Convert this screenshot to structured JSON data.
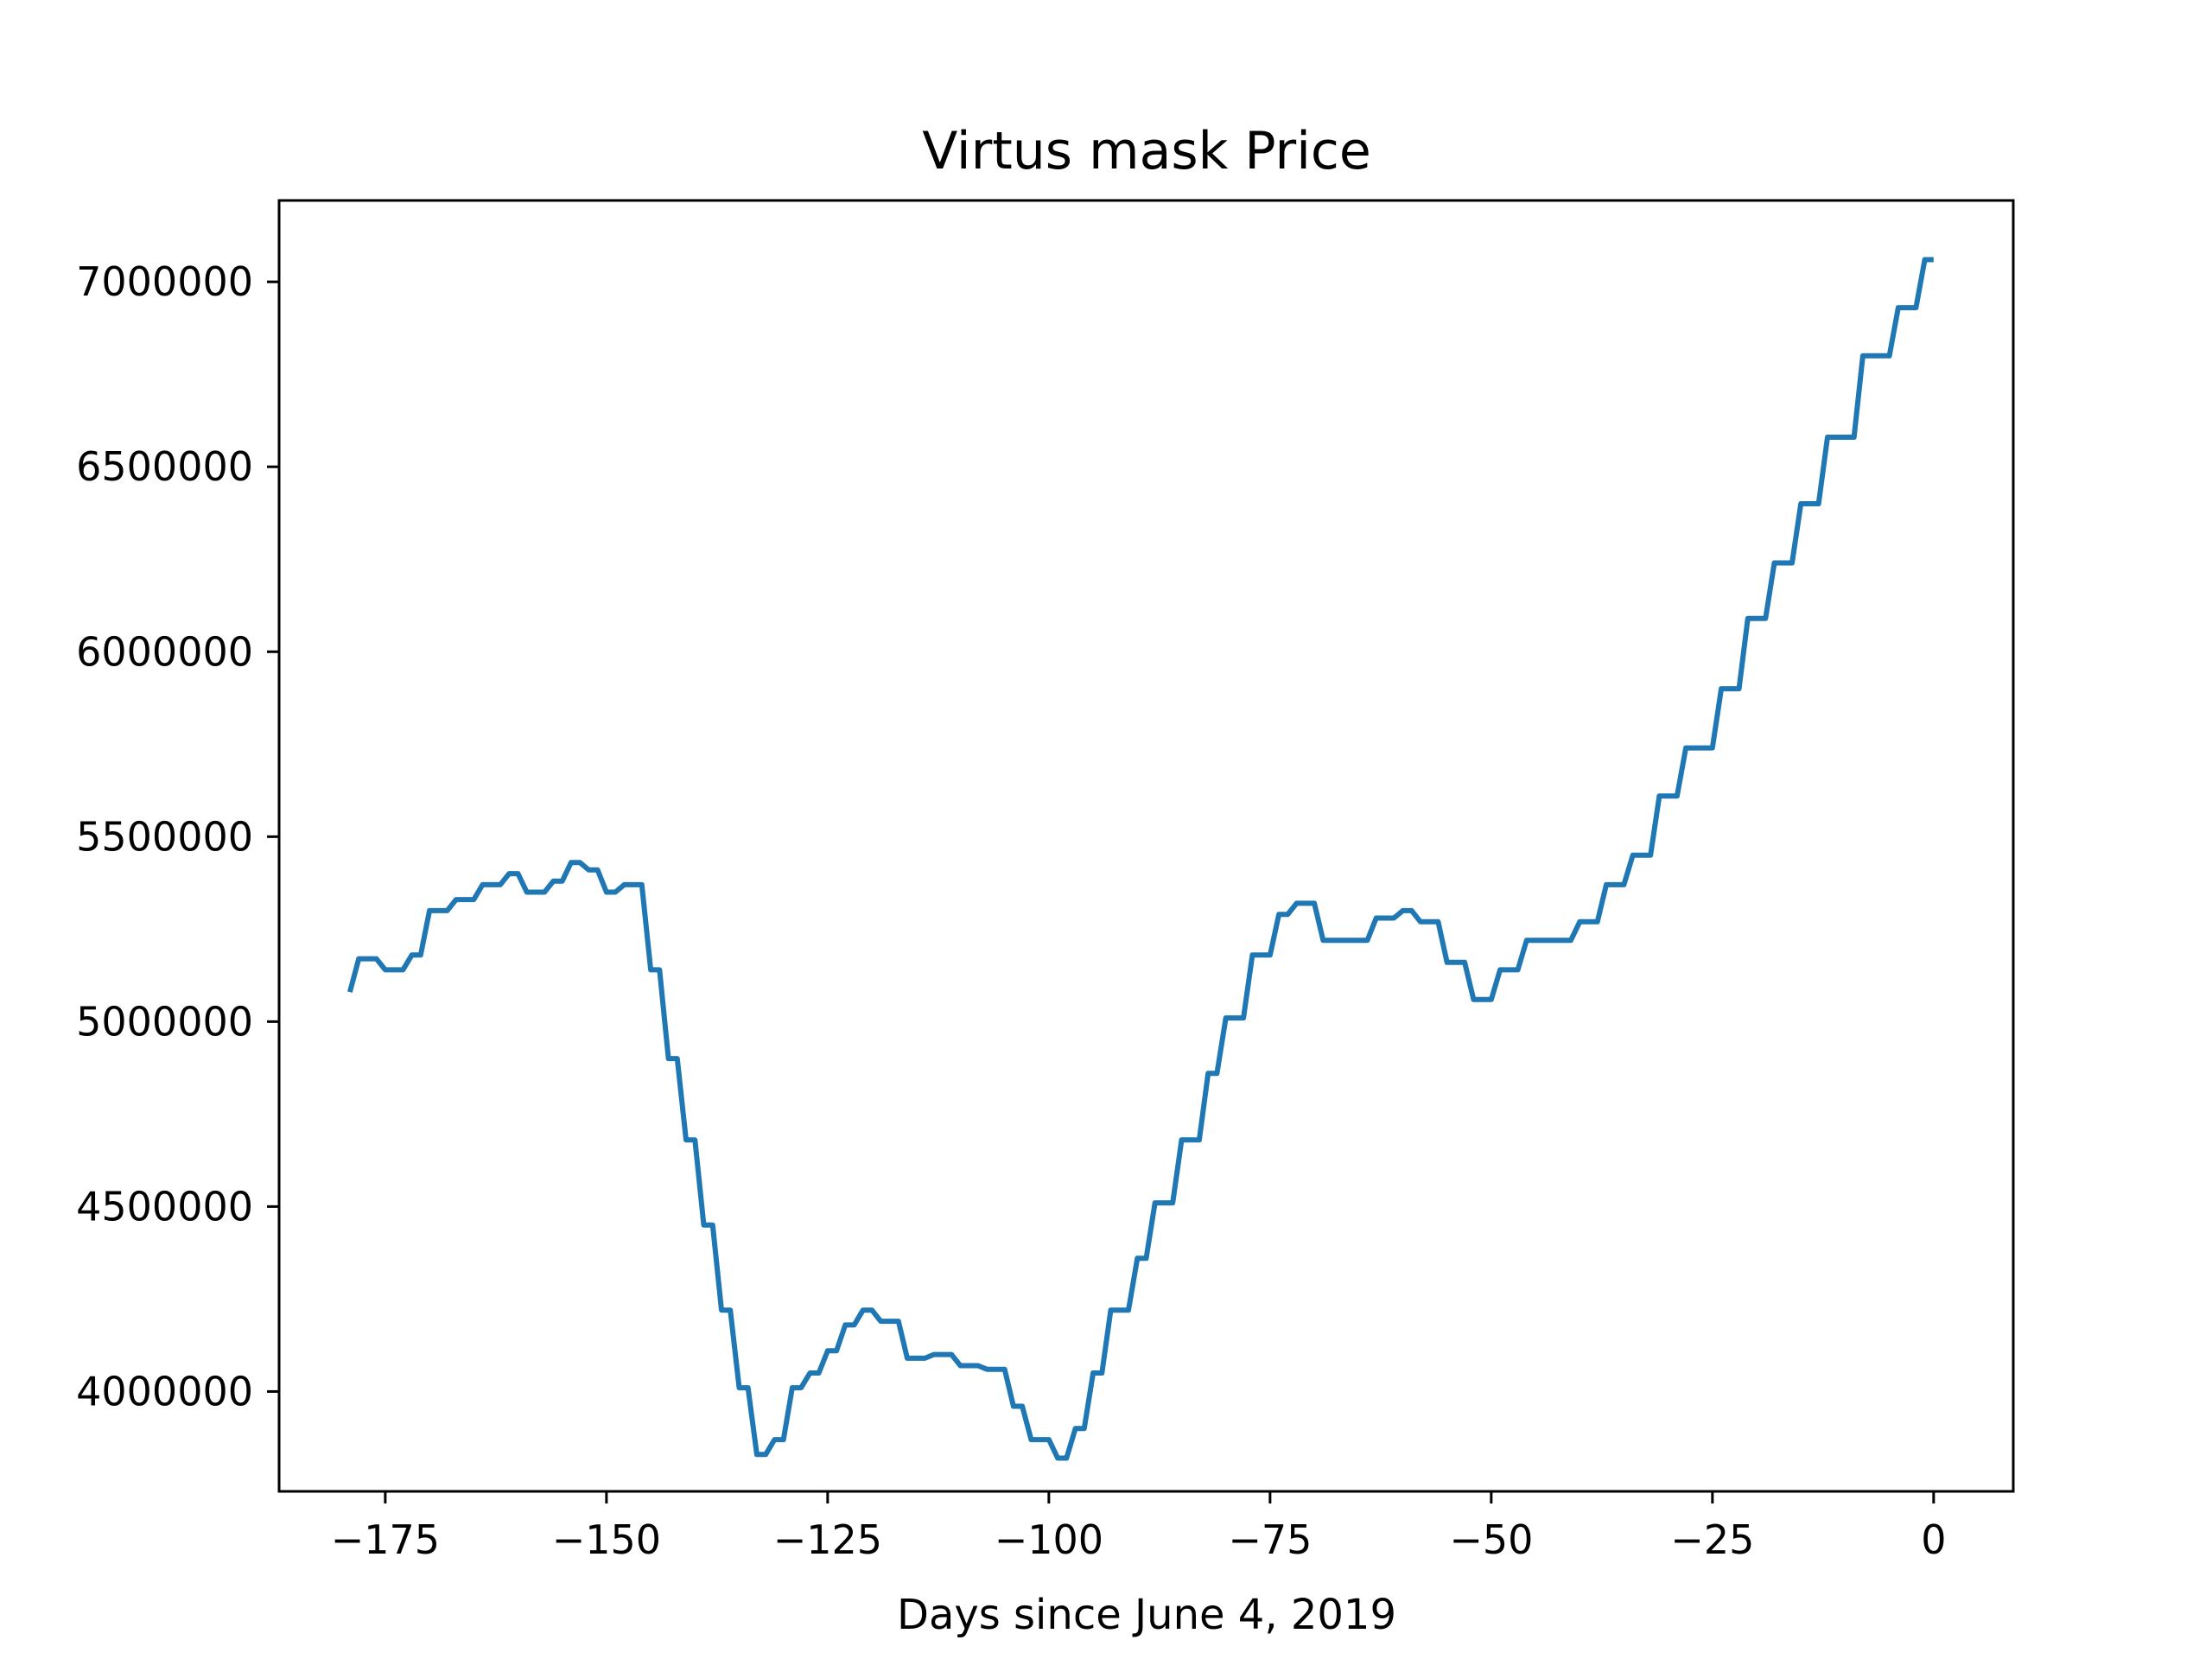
{
  "chart_data": {
    "type": "line",
    "title": "Virtus mask Price",
    "xlabel": "Days since June 4, 2019",
    "ylabel": "",
    "xlim": [
      -187,
      9
    ],
    "ylim": [
      3730000,
      7220000
    ],
    "x_ticks": [
      -175,
      -150,
      -125,
      -100,
      -75,
      -50,
      -25,
      0
    ],
    "x_tick_labels": [
      "−175",
      "−150",
      "−125",
      "−100",
      "−75",
      "−50",
      "−25",
      "0"
    ],
    "y_ticks": [
      4000000,
      4500000,
      5000000,
      5500000,
      6000000,
      6500000,
      7000000
    ],
    "y_tick_labels": [
      "4000000",
      "4500000",
      "5000000",
      "5500000",
      "6000000",
      "6500000",
      "7000000"
    ],
    "grid": false,
    "series": [
      {
        "name": "",
        "color": "#1f77b4",
        "x": [
          -179,
          -178,
          -177,
          -176,
          -175,
          -174,
          -173,
          -172,
          -171,
          -170,
          -169,
          -168,
          -167,
          -166,
          -165,
          -164,
          -163,
          -162,
          -161,
          -160,
          -159,
          -158,
          -157,
          -156,
          -155,
          -154,
          -153,
          -152,
          -151,
          -150,
          -149,
          -148,
          -147,
          -146,
          -145,
          -144,
          -143,
          -142,
          -141,
          -140,
          -139,
          -138,
          -137,
          -136,
          -135,
          -134,
          -133,
          -132,
          -131,
          -130,
          -129,
          -128,
          -127,
          -126,
          -125,
          -124,
          -123,
          -122,
          -121,
          -120,
          -119,
          -118,
          -117,
          -116,
          -115,
          -114,
          -113,
          -112,
          -111,
          -110,
          -109,
          -108,
          -107,
          -106,
          -105,
          -104,
          -103,
          -102,
          -101,
          -100,
          -99,
          -98,
          -97,
          -96,
          -95,
          -94,
          -93,
          -92,
          -91,
          -90,
          -89,
          -88,
          -87,
          -86,
          -85,
          -84,
          -83,
          -82,
          -81,
          -80,
          -79,
          -78,
          -77,
          -76,
          -75,
          -74,
          -73,
          -72,
          -71,
          -70,
          -69,
          -68,
          -67,
          -66,
          -65,
          -64,
          -63,
          -62,
          -61,
          -60,
          -59,
          -58,
          -57,
          -56,
          -55,
          -54,
          -53,
          -52,
          -51,
          -50,
          -49,
          -48,
          -47,
          -46,
          -45,
          -44,
          -43,
          -42,
          -41,
          -40,
          -39,
          -38,
          -37,
          -36,
          -35,
          -34,
          -33,
          -32,
          -31,
          -30,
          -29,
          -28,
          -27,
          -26,
          -25,
          -24,
          -23,
          -22,
          -21,
          -20,
          -19,
          -18,
          -17,
          -16,
          -15,
          -14,
          -13,
          -12,
          -11,
          -10,
          -9,
          -8,
          -7,
          -6,
          -5,
          -4,
          -3,
          -2,
          -1,
          0
        ],
        "y": [
          5080000,
          5170000,
          5170000,
          5170000,
          5140000,
          5140000,
          5140000,
          5180000,
          5180000,
          5300000,
          5300000,
          5300000,
          5330000,
          5330000,
          5330000,
          5370000,
          5370000,
          5370000,
          5400000,
          5400000,
          5350000,
          5350000,
          5350000,
          5380000,
          5380000,
          5430000,
          5430000,
          5410000,
          5410000,
          5350000,
          5350000,
          5370000,
          5370000,
          5370000,
          5140000,
          5140000,
          4900000,
          4900000,
          4680000,
          4680000,
          4450000,
          4450000,
          4220000,
          4220000,
          4010000,
          4010000,
          3830000,
          3830000,
          3870000,
          3870000,
          4010000,
          4010000,
          4050000,
          4050000,
          4110000,
          4110000,
          4180000,
          4180000,
          4220000,
          4220000,
          4190000,
          4190000,
          4190000,
          4090000,
          4090000,
          4090000,
          4100000,
          4100000,
          4100000,
          4070000,
          4070000,
          4070000,
          4060000,
          4060000,
          4060000,
          3960000,
          3960000,
          3870000,
          3870000,
          3870000,
          3820000,
          3820000,
          3900000,
          3900000,
          4050000,
          4050000,
          4220000,
          4220000,
          4220000,
          4360000,
          4360000,
          4510000,
          4510000,
          4510000,
          4680000,
          4680000,
          4680000,
          4860000,
          4860000,
          5010000,
          5010000,
          5010000,
          5180000,
          5180000,
          5180000,
          5290000,
          5290000,
          5320000,
          5320000,
          5320000,
          5220000,
          5220000,
          5220000,
          5220000,
          5220000,
          5220000,
          5280000,
          5280000,
          5280000,
          5300000,
          5300000,
          5270000,
          5270000,
          5270000,
          5160000,
          5160000,
          5160000,
          5060000,
          5060000,
          5060000,
          5140000,
          5140000,
          5140000,
          5220000,
          5220000,
          5220000,
          5220000,
          5220000,
          5220000,
          5270000,
          5270000,
          5270000,
          5370000,
          5370000,
          5370000,
          5450000,
          5450000,
          5450000,
          5610000,
          5610000,
          5610000,
          5740000,
          5740000,
          5740000,
          5740000,
          5900000,
          5900000,
          5900000,
          6090000,
          6090000,
          6090000,
          6240000,
          6240000,
          6240000,
          6400000,
          6400000,
          6400000,
          6580000,
          6580000,
          6580000,
          6580000,
          6800000,
          6800000,
          6800000,
          6800000,
          6930000,
          6930000,
          6930000,
          7060000,
          7060000
        ]
      }
    ]
  }
}
